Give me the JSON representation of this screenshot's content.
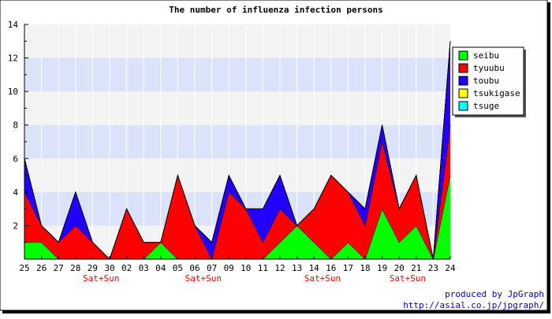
{
  "chart_data": {
    "type": "area",
    "stacked": true,
    "title": "The number of influenza infection persons",
    "xlabel": "",
    "ylabel": "",
    "ylim": [
      0,
      14
    ],
    "yticks": [
      2,
      4,
      6,
      8,
      10,
      12,
      14
    ],
    "grid": true,
    "legend_position": "right",
    "categories": [
      "25",
      "26",
      "27",
      "28",
      "29",
      "30",
      "02",
      "03",
      "04",
      "05",
      "06",
      "07",
      "09",
      "10",
      "11",
      "12",
      "13",
      "14",
      "16",
      "17",
      "18",
      "19",
      "20",
      "21",
      "23",
      "24"
    ],
    "weekend_label": "Sat+Sun",
    "weekend_after": [
      "29",
      "06",
      "14",
      "20"
    ],
    "series": [
      {
        "name": "seibu",
        "color": "#00ff00",
        "values": [
          1,
          1,
          0,
          0,
          0,
          0,
          0,
          0,
          1,
          0,
          0,
          0,
          0,
          0,
          0,
          1,
          2,
          1,
          0,
          1,
          0,
          3,
          1,
          2,
          0,
          5
        ]
      },
      {
        "name": "tyuubu",
        "color": "#ff0000",
        "values": [
          3,
          1,
          1,
          2,
          1,
          0,
          3,
          1,
          0,
          5,
          2,
          0,
          4,
          3,
          1,
          2,
          0,
          2,
          5,
          3,
          2,
          4,
          2,
          3,
          0,
          3
        ]
      },
      {
        "name": "toubu",
        "color": "#2200ff",
        "values": [
          2,
          0,
          0,
          2,
          0,
          0,
          0,
          0,
          0,
          0,
          0,
          1,
          1,
          0,
          2,
          2,
          0,
          0,
          0,
          0,
          1,
          1,
          0,
          0,
          0,
          5
        ]
      },
      {
        "name": "tsukigase",
        "color": "#ffff00",
        "values": [
          0,
          0,
          0,
          0,
          0,
          0,
          0,
          0,
          0,
          0,
          0,
          0,
          0,
          0,
          0,
          0,
          0,
          0,
          0,
          0,
          0,
          0,
          0,
          0,
          0,
          0
        ]
      },
      {
        "name": "tsuge",
        "color": "#00ffff",
        "values": [
          0,
          0,
          0,
          0,
          0,
          0,
          0,
          0,
          0,
          0,
          0,
          0,
          0,
          0,
          0,
          0,
          0,
          0,
          0,
          0,
          0,
          0,
          0,
          0,
          0,
          0
        ]
      }
    ]
  },
  "footer": {
    "line1": "produced by JpGraph",
    "line2": "http://asial.co.jp/jpgraph/"
  }
}
